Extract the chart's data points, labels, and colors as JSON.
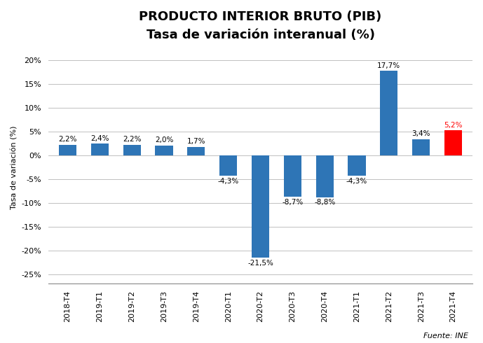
{
  "title_line1": "PRODUCTO INTERIOR BRUTO (PIB)",
  "title_line2": "Tasa de variación interanual (%)",
  "categories": [
    "2018-T4",
    "2019-T1",
    "2019-T2",
    "2019-T3",
    "2019-T4",
    "2020-T1",
    "2020-T2",
    "2020-T3",
    "2020-T4",
    "2021-T1",
    "2021-T2",
    "2021-T3",
    "2021-T4"
  ],
  "values": [
    2.2,
    2.4,
    2.2,
    2.0,
    1.7,
    -4.3,
    -21.5,
    -8.7,
    -8.8,
    -4.3,
    17.7,
    3.4,
    5.2
  ],
  "bar_colors": [
    "#2E75B6",
    "#2E75B6",
    "#2E75B6",
    "#2E75B6",
    "#2E75B6",
    "#2E75B6",
    "#2E75B6",
    "#2E75B6",
    "#2E75B6",
    "#2E75B6",
    "#2E75B6",
    "#2E75B6",
    "#FF0000"
  ],
  "label_colors": [
    "#000000",
    "#000000",
    "#000000",
    "#000000",
    "#000000",
    "#000000",
    "#000000",
    "#000000",
    "#000000",
    "#000000",
    "#000000",
    "#000000",
    "#FF0000"
  ],
  "ylabel": "Tasa de variación (%)",
  "source": "Fuente: INE",
  "ylim": [
    -27,
    22
  ],
  "yticks": [
    -25,
    -20,
    -15,
    -10,
    -5,
    0,
    5,
    10,
    15,
    20
  ],
  "background_color": "#FFFFFF",
  "grid_color": "#C0C0C0",
  "title_fontsize": 13,
  "subtitle_fontsize": 11,
  "label_fontsize": 7.5,
  "axis_fontsize": 8,
  "ylabel_fontsize": 8
}
